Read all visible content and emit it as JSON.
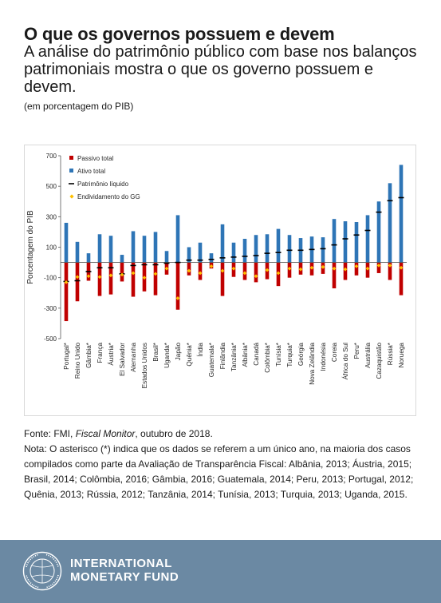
{
  "header": {
    "title": "O que os governos possuem e devem",
    "subtitle": "A análise do patrimônio público com base nos balanços patrimoniais mostra o que os governo possuem e devem.",
    "unit_note": "(em porcentagem do PIB)"
  },
  "chart_data": {
    "type": "bar",
    "ylabel": "Porcentagem do PIB",
    "ylim": [
      -500,
      700
    ],
    "yticks": [
      700,
      500,
      300,
      100,
      -100,
      -300,
      -500
    ],
    "ytick_labels": [
      "700",
      "500",
      "300",
      "100",
      "-100",
      "-300",
      "-500"
    ],
    "grid": false,
    "legend_position": "top-left",
    "categories": [
      "Portugal*",
      "Reino Unido",
      "Gâmbia*",
      "França",
      "Áustria*",
      "El Salvador",
      "Alemanha",
      "Estados Unidos",
      "Brasil*",
      "Uganda*",
      "Japão",
      "Quênia*",
      "Índia",
      "Guatemala*",
      "Finlândia",
      "Tanzânia*",
      "Albânia*",
      "Canadá",
      "Colômbia*",
      "Tunísia*",
      "Turquia*",
      "Geórgia",
      "Nova Zelândia",
      "Indonésia",
      "Coreia",
      "África do Sul",
      "Peru*",
      "Austrália",
      "Cazaquistão",
      "Rússia*",
      "Noruega"
    ],
    "series": [
      {
        "name": "Passivo total",
        "kind": "bar",
        "color": "#c00000",
        "values": [
          -385,
          -255,
          -120,
          -220,
          -210,
          -125,
          -225,
          -190,
          -215,
          -80,
          -310,
          -85,
          -115,
          -40,
          -220,
          -95,
          -115,
          -130,
          -110,
          -155,
          -100,
          -80,
          -85,
          -75,
          -170,
          -115,
          -85,
          -100,
          -70,
          -115,
          -215
        ]
      },
      {
        "name": "Ativo total",
        "kind": "bar",
        "color": "#2e75b6",
        "values": [
          260,
          135,
          60,
          185,
          175,
          50,
          205,
          175,
          200,
          75,
          310,
          100,
          130,
          60,
          250,
          130,
          155,
          180,
          185,
          220,
          180,
          160,
          170,
          165,
          285,
          270,
          265,
          310,
          400,
          520,
          640
        ]
      },
      {
        "name": "Patrimônio líquido",
        "kind": "dash",
        "color": "#000000",
        "values": [
          -125,
          -120,
          -60,
          -35,
          -35,
          -75,
          -20,
          -15,
          -15,
          -5,
          0,
          15,
          15,
          20,
          30,
          35,
          40,
          45,
          60,
          65,
          80,
          80,
          85,
          90,
          115,
          155,
          180,
          210,
          330,
          405,
          425
        ]
      },
      {
        "name": "Endividamento do GG",
        "kind": "diamond",
        "color": "#ffc000",
        "values": [
          -130,
          -95,
          -90,
          -95,
          -85,
          -80,
          -70,
          -100,
          -75,
          -40,
          -235,
          -55,
          -70,
          -25,
          -55,
          -40,
          -70,
          -90,
          -50,
          -70,
          -40,
          -45,
          -35,
          -30,
          -40,
          -45,
          -25,
          -40,
          -20,
          -20,
          -35
        ]
      }
    ]
  },
  "notes": {
    "source_prefix": "Fonte: FMI, ",
    "source_publication": "Fiscal Monitor",
    "source_suffix": ", outubro de 2018.",
    "asterisk_note": "Nota: O asterisco (*) indica que os dados se referem a um único ano, na maioria dos casos compilados como parte da Avaliação de Transparência Fiscal: Albânia, 2013; Áustria, 2015; Brasil, 2014; Colômbia, 2016; Gâmbia, 2016; Guatemala, 2014; Peru, 2013; Portugal, 2012; Quênia, 2013; Rússia, 2012; Tanzânia, 2014; Tunísia, 2013; Turquia, 2013; Uganda, 2015."
  },
  "footer": {
    "org_line1": "INTERNATIONAL",
    "org_line2": "MONETARY FUND",
    "background_color": "#6b89a3"
  }
}
